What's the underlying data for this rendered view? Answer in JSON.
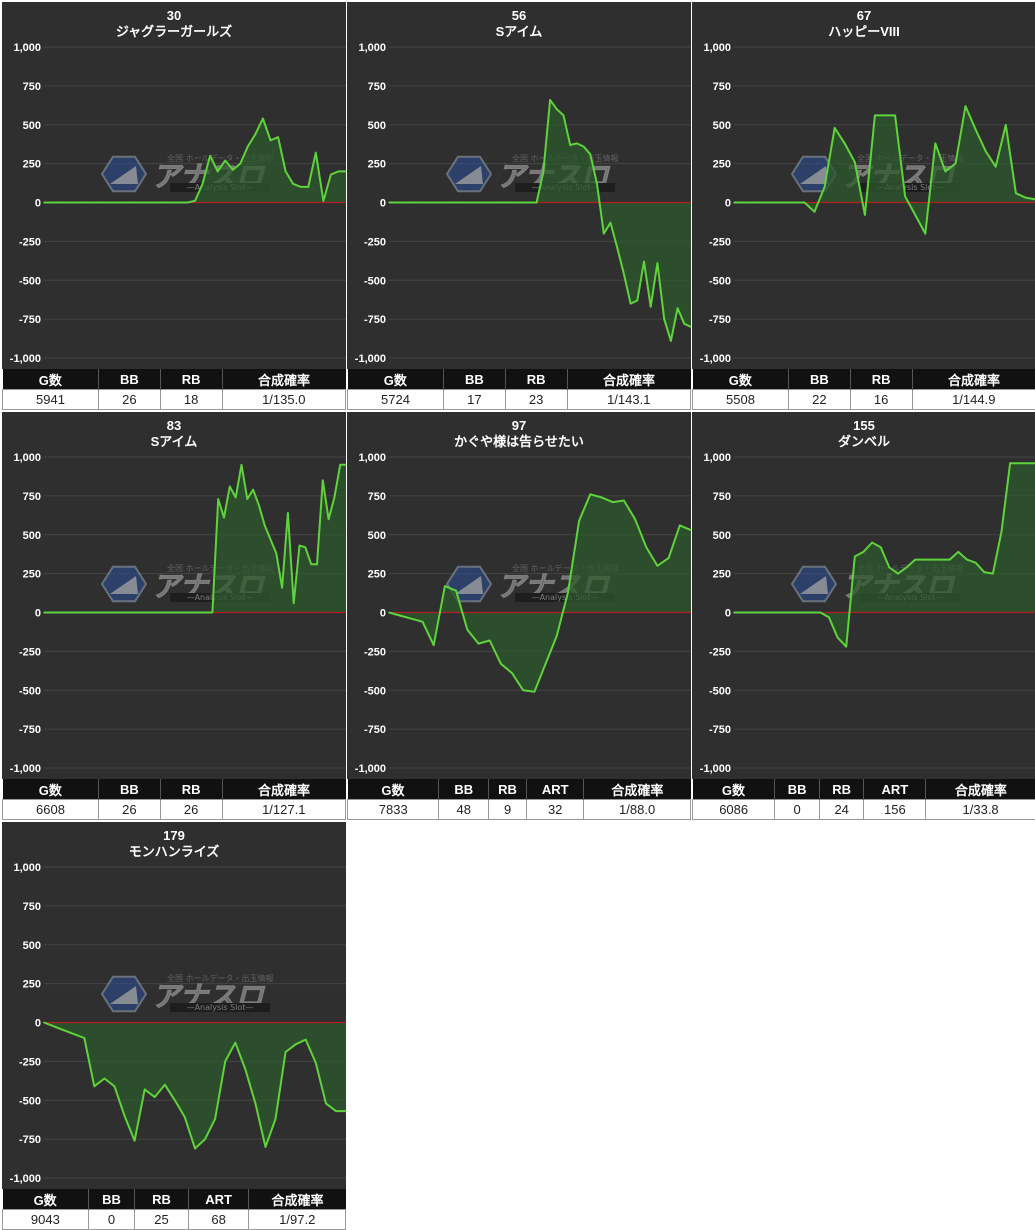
{
  "axis": {
    "ylim": [
      -1000,
      1000
    ],
    "yticks": [
      1000,
      750,
      500,
      250,
      0,
      -250,
      -500,
      -750,
      -1000
    ],
    "ytick_labels": [
      "1,000",
      "750",
      "500",
      "250",
      "0",
      "-250",
      "-500",
      "-750",
      "-1,000"
    ]
  },
  "watermark": {
    "title": "アナスロ",
    "tagline": "—Analysis Slot—",
    "small": "全国 ホールデータ・出玉情報"
  },
  "colors": {
    "line": "#5ed33b",
    "fill": "#2d5a2c",
    "zero_line": "#b02020",
    "grid": "#454545",
    "panel": "#2f2f2f"
  },
  "chart_data": [
    {
      "type": "area",
      "number": "30",
      "name": "ジャグラーガールズ",
      "ylim": [
        -1000,
        1000
      ],
      "values": [
        0,
        0,
        0,
        0,
        0,
        0,
        0,
        0,
        0,
        0,
        0,
        0,
        0,
        0,
        0,
        0,
        0,
        0,
        0,
        0,
        10,
        120,
        300,
        200,
        270,
        210,
        250,
        360,
        440,
        540,
        400,
        420,
        200,
        120,
        100,
        100,
        320,
        10,
        180,
        200,
        200
      ],
      "stats": {
        "headers": [
          "G数",
          "BB",
          "RB",
          "合成確率"
        ],
        "values": [
          "5941",
          "26",
          "18",
          "1/135.0"
        ],
        "widths": [
          28,
          18,
          18,
          36
        ]
      }
    },
    {
      "type": "area",
      "number": "56",
      "name": "Sアイム",
      "ylim": [
        -1000,
        1000
      ],
      "values": [
        0,
        0,
        0,
        0,
        0,
        0,
        0,
        0,
        0,
        0,
        0,
        0,
        0,
        0,
        0,
        0,
        0,
        0,
        0,
        0,
        0,
        0,
        0,
        200,
        660,
        600,
        560,
        370,
        380,
        360,
        310,
        120,
        -200,
        -130,
        -290,
        -460,
        -650,
        -630,
        -380,
        -670,
        -390,
        -750,
        -890,
        -680,
        -780,
        -800
      ],
      "stats": {
        "headers": [
          "G数",
          "BB",
          "RB",
          "合成確率"
        ],
        "values": [
          "5724",
          "17",
          "23",
          "1/143.1"
        ],
        "widths": [
          28,
          18,
          18,
          36
        ]
      }
    },
    {
      "type": "area",
      "number": "67",
      "name": "ハッピーVIII",
      "ylim": [
        -1000,
        1000
      ],
      "values": [
        0,
        0,
        0,
        0,
        0,
        0,
        0,
        0,
        -60,
        100,
        480,
        380,
        260,
        -80,
        560,
        560,
        560,
        40,
        -80,
        -200,
        380,
        200,
        250,
        620,
        470,
        330,
        230,
        500,
        60,
        30,
        20
      ],
      "stats": {
        "headers": [
          "G数",
          "BB",
          "RB",
          "合成確率"
        ],
        "values": [
          "5508",
          "22",
          "16",
          "1/144.9"
        ],
        "widths": [
          28,
          18,
          18,
          36
        ]
      }
    },
    {
      "type": "area",
      "number": "83",
      "name": "Sアイム",
      "ylim": [
        -1000,
        1000
      ],
      "values": [
        0,
        0,
        0,
        0,
        0,
        0,
        0,
        0,
        0,
        0,
        0,
        0,
        0,
        0,
        0,
        0,
        0,
        0,
        0,
        0,
        0,
        0,
        0,
        0,
        0,
        0,
        0,
        0,
        0,
        0,
        730,
        610,
        810,
        740,
        950,
        730,
        790,
        690,
        560,
        470,
        380,
        160,
        640,
        60,
        430,
        420,
        310,
        310,
        850,
        600,
        740,
        950,
        950
      ],
      "stats": {
        "headers": [
          "G数",
          "BB",
          "RB",
          "合成確率"
        ],
        "values": [
          "6608",
          "26",
          "26",
          "1/127.1"
        ],
        "widths": [
          28,
          18,
          18,
          36
        ]
      }
    },
    {
      "type": "area",
      "number": "97",
      "name": "かぐや様は告らせたい",
      "ylim": [
        -1000,
        1000
      ],
      "values": [
        0,
        -20,
        -40,
        -60,
        -210,
        170,
        140,
        -110,
        -200,
        -180,
        -330,
        -390,
        -500,
        -510,
        -330,
        -150,
        130,
        590,
        760,
        740,
        710,
        720,
        600,
        420,
        300,
        350,
        560,
        530
      ],
      "stats": {
        "headers": [
          "G数",
          "BB",
          "RB",
          "ART",
          "合成確率"
        ],
        "values": [
          "7833",
          "48",
          "9",
          "32",
          "1/88.0"
        ],
        "widths": [
          24,
          13,
          10,
          15,
          28
        ]
      }
    },
    {
      "type": "area",
      "number": "155",
      "name": "ダンベル",
      "ylim": [
        -1000,
        1000
      ],
      "values": [
        0,
        0,
        0,
        0,
        0,
        0,
        0,
        0,
        0,
        0,
        0,
        -30,
        -160,
        -220,
        360,
        390,
        450,
        420,
        290,
        250,
        290,
        340,
        340,
        340,
        340,
        340,
        390,
        340,
        320,
        260,
        250,
        520,
        960,
        960,
        960,
        960
      ],
      "stats": {
        "headers": [
          "G数",
          "BB",
          "RB",
          "ART",
          "合成確率"
        ],
        "values": [
          "6086",
          "0",
          "24",
          "156",
          "1/33.8"
        ],
        "widths": [
          24,
          13,
          13,
          18,
          32
        ]
      }
    },
    {
      "type": "area",
      "number": "179",
      "name": "モンハンライズ",
      "ylim": [
        -1000,
        1000
      ],
      "values": [
        0,
        -25,
        -50,
        -75,
        -100,
        -410,
        -360,
        -410,
        -600,
        -760,
        -430,
        -480,
        -400,
        -500,
        -610,
        -810,
        -750,
        -620,
        -250,
        -130,
        -300,
        -520,
        -800,
        -620,
        -190,
        -140,
        -110,
        -260,
        -520,
        -570,
        -570
      ],
      "stats": {
        "headers": [
          "G数",
          "BB",
          "RB",
          "ART",
          "合成確率"
        ],
        "values": [
          "9043",
          "0",
          "25",
          "68",
          "1/97.2"
        ],
        "widths": [
          24,
          13,
          15,
          17,
          27
        ]
      }
    }
  ]
}
